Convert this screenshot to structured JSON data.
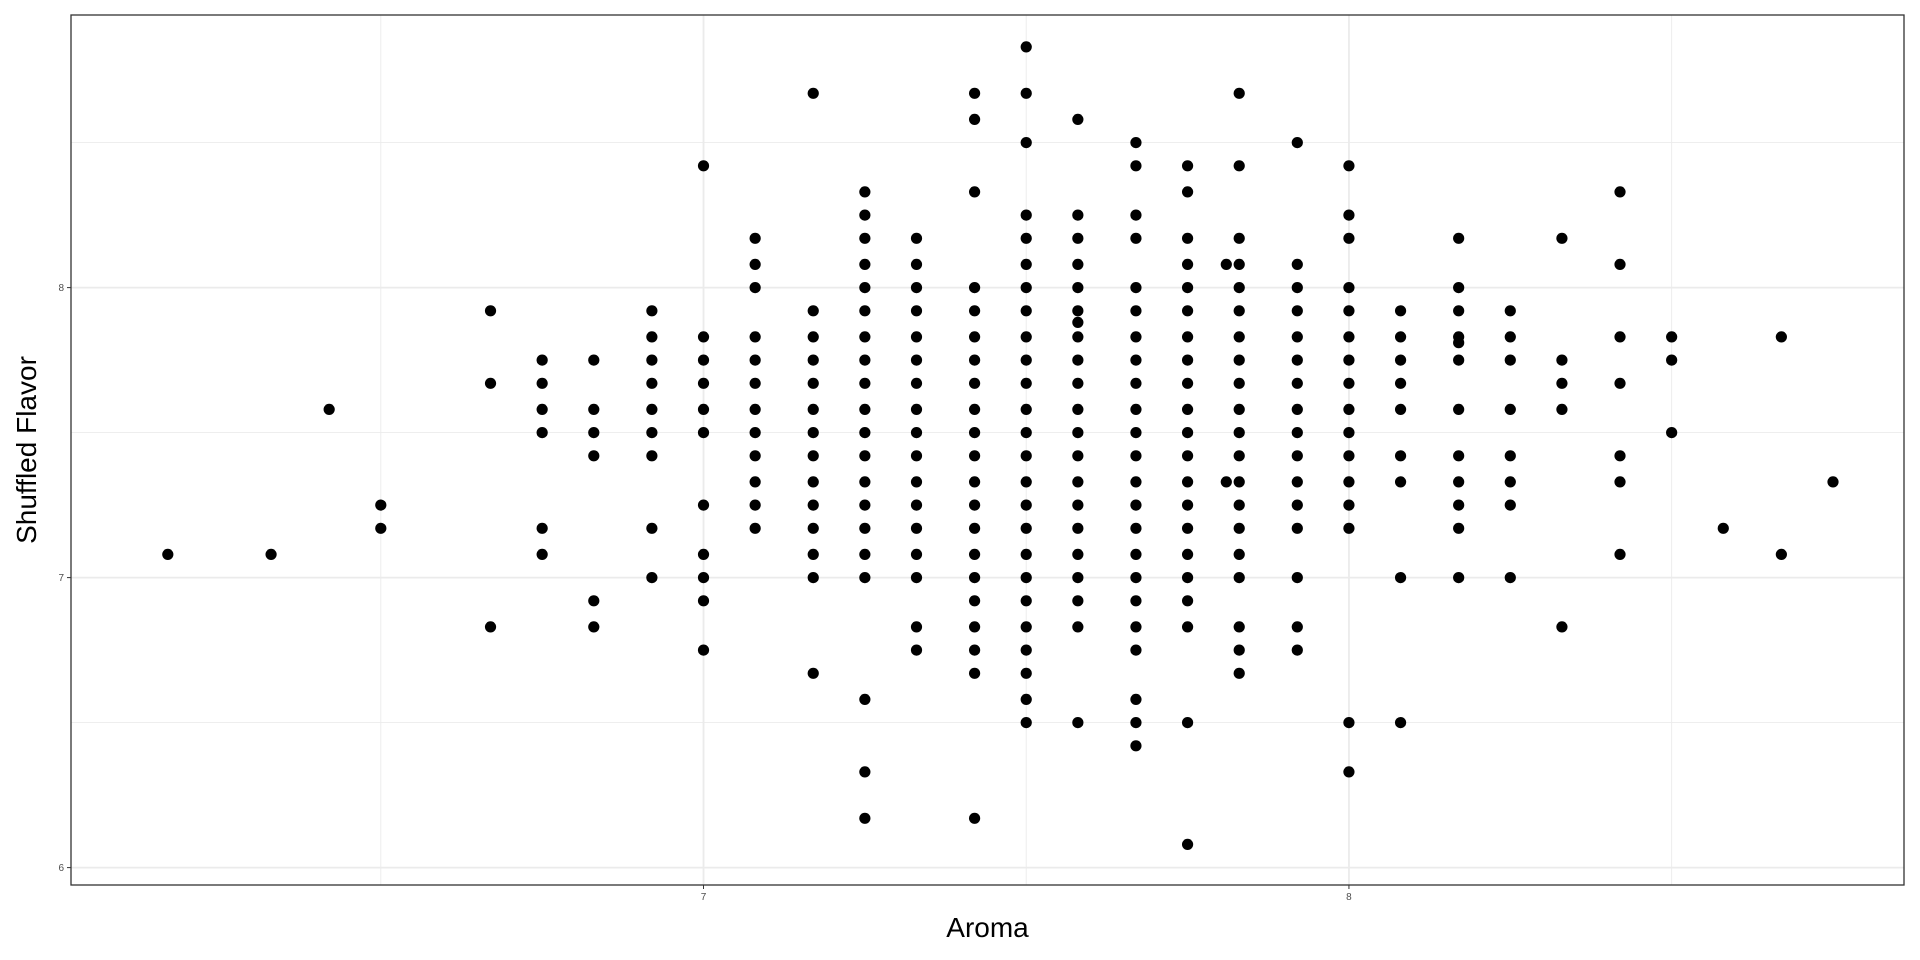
{
  "chart_data": {
    "type": "scatter",
    "title": "",
    "xlabel": "Aroma",
    "ylabel": "Shuffled Flavor",
    "xlim": [
      6.02,
      8.86
    ],
    "ylim": [
      5.94,
      8.94
    ],
    "x_ticks": [
      "7",
      "8"
    ],
    "y_ticks": [
      "6",
      "7",
      "8"
    ],
    "x_tick_values": [
      7,
      8
    ],
    "y_tick_values": [
      6,
      7,
      8
    ],
    "x_minor_grid": [
      6.5,
      7.5,
      8.5
    ],
    "y_minor_grid": [
      6.5,
      7.5,
      8.5
    ],
    "grid": true,
    "theme": "bw",
    "point_color": "#000000",
    "panel_border_color": "#333333",
    "grid_color": "#ebebeb",
    "points": [
      {
        "x": 6.17,
        "y": 7.08
      },
      {
        "x": 6.33,
        "y": 7.08
      },
      {
        "x": 6.42,
        "y": 7.58
      },
      {
        "x": 6.5,
        "y": 7.25
      },
      {
        "x": 6.5,
        "y": 7.17
      },
      {
        "x": 6.67,
        "y": 7.92
      },
      {
        "x": 6.67,
        "y": 7.67
      },
      {
        "x": 6.67,
        "y": 6.83
      },
      {
        "x": 6.75,
        "y": 7.75
      },
      {
        "x": 6.75,
        "y": 7.67
      },
      {
        "x": 6.75,
        "y": 7.58
      },
      {
        "x": 6.75,
        "y": 7.5
      },
      {
        "x": 6.75,
        "y": 7.17
      },
      {
        "x": 6.75,
        "y": 7.08
      },
      {
        "x": 6.83,
        "y": 7.75
      },
      {
        "x": 6.83,
        "y": 7.58
      },
      {
        "x": 6.83,
        "y": 7.5
      },
      {
        "x": 6.83,
        "y": 7.42
      },
      {
        "x": 6.83,
        "y": 6.92
      },
      {
        "x": 6.83,
        "y": 6.83
      },
      {
        "x": 6.92,
        "y": 7.92
      },
      {
        "x": 6.92,
        "y": 7.83
      },
      {
        "x": 6.92,
        "y": 7.75
      },
      {
        "x": 6.92,
        "y": 7.67
      },
      {
        "x": 6.92,
        "y": 7.58
      },
      {
        "x": 6.92,
        "y": 7.5
      },
      {
        "x": 6.92,
        "y": 7.42
      },
      {
        "x": 6.92,
        "y": 7.17
      },
      {
        "x": 6.92,
        "y": 7.0
      },
      {
        "x": 7.0,
        "y": 8.42
      },
      {
        "x": 7.0,
        "y": 7.83
      },
      {
        "x": 7.0,
        "y": 7.75
      },
      {
        "x": 7.0,
        "y": 7.67
      },
      {
        "x": 7.0,
        "y": 7.58
      },
      {
        "x": 7.0,
        "y": 7.5
      },
      {
        "x": 7.0,
        "y": 7.25
      },
      {
        "x": 7.0,
        "y": 7.08
      },
      {
        "x": 7.0,
        "y": 7.0
      },
      {
        "x": 7.0,
        "y": 6.92
      },
      {
        "x": 7.0,
        "y": 6.75
      },
      {
        "x": 7.08,
        "y": 8.17
      },
      {
        "x": 7.08,
        "y": 8.08
      },
      {
        "x": 7.08,
        "y": 8.0
      },
      {
        "x": 7.08,
        "y": 7.83
      },
      {
        "x": 7.08,
        "y": 7.75
      },
      {
        "x": 7.08,
        "y": 7.67
      },
      {
        "x": 7.08,
        "y": 7.58
      },
      {
        "x": 7.08,
        "y": 7.5
      },
      {
        "x": 7.08,
        "y": 7.42
      },
      {
        "x": 7.08,
        "y": 7.33
      },
      {
        "x": 7.08,
        "y": 7.25
      },
      {
        "x": 7.08,
        "y": 7.17
      },
      {
        "x": 7.17,
        "y": 8.67
      },
      {
        "x": 7.17,
        "y": 7.92
      },
      {
        "x": 7.17,
        "y": 7.83
      },
      {
        "x": 7.17,
        "y": 7.75
      },
      {
        "x": 7.17,
        "y": 7.67
      },
      {
        "x": 7.17,
        "y": 7.58
      },
      {
        "x": 7.17,
        "y": 7.5
      },
      {
        "x": 7.17,
        "y": 7.42
      },
      {
        "x": 7.17,
        "y": 7.33
      },
      {
        "x": 7.17,
        "y": 7.25
      },
      {
        "x": 7.17,
        "y": 7.17
      },
      {
        "x": 7.17,
        "y": 7.08
      },
      {
        "x": 7.17,
        "y": 7.0
      },
      {
        "x": 7.17,
        "y": 6.67
      },
      {
        "x": 7.25,
        "y": 8.33
      },
      {
        "x": 7.25,
        "y": 8.25
      },
      {
        "x": 7.25,
        "y": 8.17
      },
      {
        "x": 7.25,
        "y": 8.08
      },
      {
        "x": 7.25,
        "y": 8.0
      },
      {
        "x": 7.25,
        "y": 7.92
      },
      {
        "x": 7.25,
        "y": 7.83
      },
      {
        "x": 7.25,
        "y": 7.75
      },
      {
        "x": 7.25,
        "y": 7.67
      },
      {
        "x": 7.25,
        "y": 7.58
      },
      {
        "x": 7.25,
        "y": 7.5
      },
      {
        "x": 7.25,
        "y": 7.42
      },
      {
        "x": 7.25,
        "y": 7.33
      },
      {
        "x": 7.25,
        "y": 7.25
      },
      {
        "x": 7.25,
        "y": 7.17
      },
      {
        "x": 7.25,
        "y": 7.08
      },
      {
        "x": 7.25,
        "y": 7.0
      },
      {
        "x": 7.25,
        "y": 6.58
      },
      {
        "x": 7.25,
        "y": 6.33
      },
      {
        "x": 7.25,
        "y": 6.17
      },
      {
        "x": 7.33,
        "y": 8.17
      },
      {
        "x": 7.33,
        "y": 8.08
      },
      {
        "x": 7.33,
        "y": 8.0
      },
      {
        "x": 7.33,
        "y": 7.92
      },
      {
        "x": 7.33,
        "y": 7.83
      },
      {
        "x": 7.33,
        "y": 7.75
      },
      {
        "x": 7.33,
        "y": 7.67
      },
      {
        "x": 7.33,
        "y": 7.58
      },
      {
        "x": 7.33,
        "y": 7.5
      },
      {
        "x": 7.33,
        "y": 7.42
      },
      {
        "x": 7.33,
        "y": 7.33
      },
      {
        "x": 7.33,
        "y": 7.25
      },
      {
        "x": 7.33,
        "y": 7.17
      },
      {
        "x": 7.33,
        "y": 7.08
      },
      {
        "x": 7.33,
        "y": 7.0
      },
      {
        "x": 7.33,
        "y": 6.83
      },
      {
        "x": 7.33,
        "y": 6.75
      },
      {
        "x": 7.42,
        "y": 8.67
      },
      {
        "x": 7.42,
        "y": 8.58
      },
      {
        "x": 7.42,
        "y": 8.33
      },
      {
        "x": 7.42,
        "y": 8.0
      },
      {
        "x": 7.42,
        "y": 7.92
      },
      {
        "x": 7.42,
        "y": 7.83
      },
      {
        "x": 7.42,
        "y": 7.75
      },
      {
        "x": 7.42,
        "y": 7.67
      },
      {
        "x": 7.42,
        "y": 7.58
      },
      {
        "x": 7.42,
        "y": 7.5
      },
      {
        "x": 7.42,
        "y": 7.42
      },
      {
        "x": 7.42,
        "y": 7.33
      },
      {
        "x": 7.42,
        "y": 7.25
      },
      {
        "x": 7.42,
        "y": 7.17
      },
      {
        "x": 7.42,
        "y": 7.08
      },
      {
        "x": 7.42,
        "y": 7.0
      },
      {
        "x": 7.42,
        "y": 6.92
      },
      {
        "x": 7.42,
        "y": 6.83
      },
      {
        "x": 7.42,
        "y": 6.75
      },
      {
        "x": 7.42,
        "y": 6.67
      },
      {
        "x": 7.42,
        "y": 6.17
      },
      {
        "x": 7.5,
        "y": 8.83
      },
      {
        "x": 7.5,
        "y": 8.67
      },
      {
        "x": 7.5,
        "y": 8.5
      },
      {
        "x": 7.5,
        "y": 8.25
      },
      {
        "x": 7.5,
        "y": 8.17
      },
      {
        "x": 7.5,
        "y": 8.08
      },
      {
        "x": 7.5,
        "y": 8.0
      },
      {
        "x": 7.5,
        "y": 7.92
      },
      {
        "x": 7.5,
        "y": 7.83
      },
      {
        "x": 7.5,
        "y": 7.75
      },
      {
        "x": 7.5,
        "y": 7.67
      },
      {
        "x": 7.5,
        "y": 7.58
      },
      {
        "x": 7.5,
        "y": 7.5
      },
      {
        "x": 7.5,
        "y": 7.42
      },
      {
        "x": 7.5,
        "y": 7.33
      },
      {
        "x": 7.5,
        "y": 7.25
      },
      {
        "x": 7.5,
        "y": 7.17
      },
      {
        "x": 7.5,
        "y": 7.08
      },
      {
        "x": 7.5,
        "y": 7.0
      },
      {
        "x": 7.5,
        "y": 6.92
      },
      {
        "x": 7.5,
        "y": 6.83
      },
      {
        "x": 7.5,
        "y": 6.75
      },
      {
        "x": 7.5,
        "y": 6.67
      },
      {
        "x": 7.5,
        "y": 6.58
      },
      {
        "x": 7.5,
        "y": 6.5
      },
      {
        "x": 7.58,
        "y": 8.58
      },
      {
        "x": 7.58,
        "y": 8.25
      },
      {
        "x": 7.58,
        "y": 8.17
      },
      {
        "x": 7.58,
        "y": 8.08
      },
      {
        "x": 7.58,
        "y": 8.0
      },
      {
        "x": 7.58,
        "y": 7.92
      },
      {
        "x": 7.58,
        "y": 7.88
      },
      {
        "x": 7.58,
        "y": 7.83
      },
      {
        "x": 7.58,
        "y": 7.75
      },
      {
        "x": 7.58,
        "y": 7.67
      },
      {
        "x": 7.58,
        "y": 7.58
      },
      {
        "x": 7.58,
        "y": 7.5
      },
      {
        "x": 7.58,
        "y": 7.42
      },
      {
        "x": 7.58,
        "y": 7.33
      },
      {
        "x": 7.58,
        "y": 7.25
      },
      {
        "x": 7.58,
        "y": 7.17
      },
      {
        "x": 7.58,
        "y": 7.08
      },
      {
        "x": 7.58,
        "y": 7.0
      },
      {
        "x": 7.58,
        "y": 6.92
      },
      {
        "x": 7.58,
        "y": 6.83
      },
      {
        "x": 7.58,
        "y": 6.5
      },
      {
        "x": 7.67,
        "y": 8.5
      },
      {
        "x": 7.67,
        "y": 8.42
      },
      {
        "x": 7.67,
        "y": 8.25
      },
      {
        "x": 7.67,
        "y": 8.17
      },
      {
        "x": 7.67,
        "y": 8.0
      },
      {
        "x": 7.67,
        "y": 7.92
      },
      {
        "x": 7.67,
        "y": 7.83
      },
      {
        "x": 7.67,
        "y": 7.75
      },
      {
        "x": 7.67,
        "y": 7.67
      },
      {
        "x": 7.67,
        "y": 7.58
      },
      {
        "x": 7.67,
        "y": 7.5
      },
      {
        "x": 7.67,
        "y": 7.42
      },
      {
        "x": 7.67,
        "y": 7.33
      },
      {
        "x": 7.67,
        "y": 7.25
      },
      {
        "x": 7.67,
        "y": 7.17
      },
      {
        "x": 7.67,
        "y": 7.08
      },
      {
        "x": 7.67,
        "y": 7.0
      },
      {
        "x": 7.67,
        "y": 6.92
      },
      {
        "x": 7.67,
        "y": 6.83
      },
      {
        "x": 7.67,
        "y": 6.75
      },
      {
        "x": 7.67,
        "y": 6.58
      },
      {
        "x": 7.67,
        "y": 6.5
      },
      {
        "x": 7.67,
        "y": 6.42
      },
      {
        "x": 7.75,
        "y": 8.42
      },
      {
        "x": 7.75,
        "y": 8.33
      },
      {
        "x": 7.75,
        "y": 8.17
      },
      {
        "x": 7.75,
        "y": 8.08
      },
      {
        "x": 7.75,
        "y": 8.0
      },
      {
        "x": 7.75,
        "y": 7.92
      },
      {
        "x": 7.75,
        "y": 7.83
      },
      {
        "x": 7.75,
        "y": 7.75
      },
      {
        "x": 7.75,
        "y": 7.67
      },
      {
        "x": 7.75,
        "y": 7.58
      },
      {
        "x": 7.75,
        "y": 7.5
      },
      {
        "x": 7.75,
        "y": 7.42
      },
      {
        "x": 7.75,
        "y": 7.33
      },
      {
        "x": 7.75,
        "y": 7.25
      },
      {
        "x": 7.75,
        "y": 7.17
      },
      {
        "x": 7.75,
        "y": 7.08
      },
      {
        "x": 7.75,
        "y": 7.0
      },
      {
        "x": 7.75,
        "y": 6.92
      },
      {
        "x": 7.75,
        "y": 6.83
      },
      {
        "x": 7.75,
        "y": 6.5
      },
      {
        "x": 7.75,
        "y": 6.08
      },
      {
        "x": 7.81,
        "y": 8.08
      },
      {
        "x": 7.81,
        "y": 7.33
      },
      {
        "x": 7.83,
        "y": 8.67
      },
      {
        "x": 7.83,
        "y": 8.42
      },
      {
        "x": 7.83,
        "y": 8.17
      },
      {
        "x": 7.83,
        "y": 8.08
      },
      {
        "x": 7.83,
        "y": 8.0
      },
      {
        "x": 7.83,
        "y": 7.92
      },
      {
        "x": 7.83,
        "y": 7.83
      },
      {
        "x": 7.83,
        "y": 7.75
      },
      {
        "x": 7.83,
        "y": 7.67
      },
      {
        "x": 7.83,
        "y": 7.58
      },
      {
        "x": 7.83,
        "y": 7.5
      },
      {
        "x": 7.83,
        "y": 7.42
      },
      {
        "x": 7.83,
        "y": 7.33
      },
      {
        "x": 7.83,
        "y": 7.25
      },
      {
        "x": 7.83,
        "y": 7.17
      },
      {
        "x": 7.83,
        "y": 7.08
      },
      {
        "x": 7.83,
        "y": 7.0
      },
      {
        "x": 7.83,
        "y": 6.83
      },
      {
        "x": 7.83,
        "y": 6.75
      },
      {
        "x": 7.83,
        "y": 6.67
      },
      {
        "x": 7.92,
        "y": 8.5
      },
      {
        "x": 7.92,
        "y": 8.08
      },
      {
        "x": 7.92,
        "y": 8.0
      },
      {
        "x": 7.92,
        "y": 7.92
      },
      {
        "x": 7.92,
        "y": 7.83
      },
      {
        "x": 7.92,
        "y": 7.75
      },
      {
        "x": 7.92,
        "y": 7.67
      },
      {
        "x": 7.92,
        "y": 7.58
      },
      {
        "x": 7.92,
        "y": 7.5
      },
      {
        "x": 7.92,
        "y": 7.42
      },
      {
        "x": 7.92,
        "y": 7.33
      },
      {
        "x": 7.92,
        "y": 7.25
      },
      {
        "x": 7.92,
        "y": 7.17
      },
      {
        "x": 7.92,
        "y": 7.0
      },
      {
        "x": 7.92,
        "y": 6.83
      },
      {
        "x": 7.92,
        "y": 6.75
      },
      {
        "x": 8.0,
        "y": 8.42
      },
      {
        "x": 8.0,
        "y": 8.25
      },
      {
        "x": 8.0,
        "y": 8.17
      },
      {
        "x": 8.0,
        "y": 8.0
      },
      {
        "x": 8.0,
        "y": 7.92
      },
      {
        "x": 8.0,
        "y": 7.83
      },
      {
        "x": 8.0,
        "y": 7.75
      },
      {
        "x": 8.0,
        "y": 7.67
      },
      {
        "x": 8.0,
        "y": 7.58
      },
      {
        "x": 8.0,
        "y": 7.5
      },
      {
        "x": 8.0,
        "y": 7.42
      },
      {
        "x": 8.0,
        "y": 7.33
      },
      {
        "x": 8.0,
        "y": 7.25
      },
      {
        "x": 8.0,
        "y": 7.17
      },
      {
        "x": 8.0,
        "y": 6.5
      },
      {
        "x": 8.0,
        "y": 6.33
      },
      {
        "x": 8.08,
        "y": 7.92
      },
      {
        "x": 8.08,
        "y": 7.83
      },
      {
        "x": 8.08,
        "y": 7.75
      },
      {
        "x": 8.08,
        "y": 7.67
      },
      {
        "x": 8.08,
        "y": 7.58
      },
      {
        "x": 8.08,
        "y": 7.42
      },
      {
        "x": 8.08,
        "y": 7.33
      },
      {
        "x": 8.08,
        "y": 7.0
      },
      {
        "x": 8.08,
        "y": 6.5
      },
      {
        "x": 8.17,
        "y": 8.17
      },
      {
        "x": 8.17,
        "y": 8.0
      },
      {
        "x": 8.17,
        "y": 7.92
      },
      {
        "x": 8.17,
        "y": 7.83
      },
      {
        "x": 8.17,
        "y": 7.81
      },
      {
        "x": 8.17,
        "y": 7.75
      },
      {
        "x": 8.17,
        "y": 7.58
      },
      {
        "x": 8.17,
        "y": 7.42
      },
      {
        "x": 8.17,
        "y": 7.33
      },
      {
        "x": 8.17,
        "y": 7.25
      },
      {
        "x": 8.17,
        "y": 7.17
      },
      {
        "x": 8.17,
        "y": 7.0
      },
      {
        "x": 8.25,
        "y": 7.92
      },
      {
        "x": 8.25,
        "y": 7.83
      },
      {
        "x": 8.25,
        "y": 7.75
      },
      {
        "x": 8.25,
        "y": 7.58
      },
      {
        "x": 8.25,
        "y": 7.42
      },
      {
        "x": 8.25,
        "y": 7.33
      },
      {
        "x": 8.25,
        "y": 7.25
      },
      {
        "x": 8.25,
        "y": 7.0
      },
      {
        "x": 8.33,
        "y": 8.17
      },
      {
        "x": 8.33,
        "y": 7.75
      },
      {
        "x": 8.33,
        "y": 7.67
      },
      {
        "x": 8.33,
        "y": 7.58
      },
      {
        "x": 8.33,
        "y": 6.83
      },
      {
        "x": 8.42,
        "y": 8.33
      },
      {
        "x": 8.42,
        "y": 8.08
      },
      {
        "x": 8.42,
        "y": 7.83
      },
      {
        "x": 8.42,
        "y": 7.67
      },
      {
        "x": 8.42,
        "y": 7.42
      },
      {
        "x": 8.42,
        "y": 7.33
      },
      {
        "x": 8.42,
        "y": 7.08
      },
      {
        "x": 8.5,
        "y": 7.83
      },
      {
        "x": 8.5,
        "y": 7.75
      },
      {
        "x": 8.5,
        "y": 7.5
      },
      {
        "x": 8.58,
        "y": 7.17
      },
      {
        "x": 8.67,
        "y": 7.83
      },
      {
        "x": 8.67,
        "y": 7.08
      },
      {
        "x": 8.75,
        "y": 7.33
      }
    ]
  }
}
